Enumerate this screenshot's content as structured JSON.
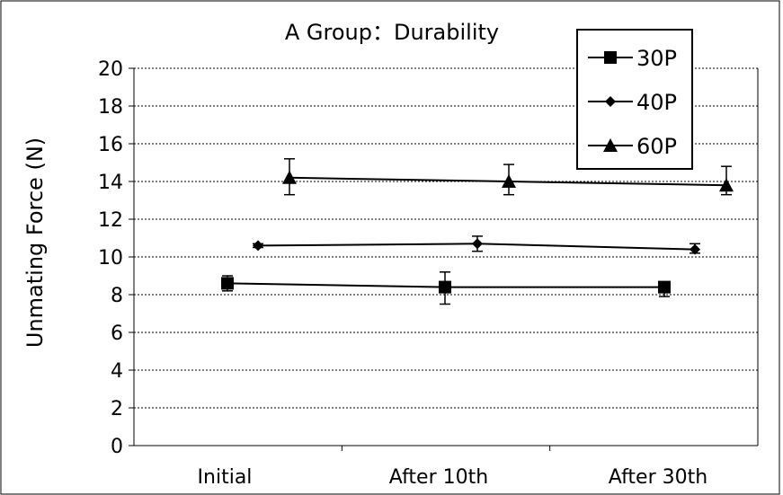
{
  "chart_data": {
    "type": "line",
    "title": "A Group：Durability",
    "xlabel": "",
    "ylabel": "Unmating Force (N)",
    "categories": [
      "Initial",
      "After 10th",
      "After 30th"
    ],
    "ylim": [
      0,
      20
    ],
    "yticks": [
      "0",
      "2",
      "4",
      "6",
      "8",
      "10",
      "12",
      "14",
      "16",
      "18",
      "20"
    ],
    "grid": "horizontal dotted",
    "legend_placement": "top-right",
    "series": [
      {
        "name": "30P",
        "marker": "square",
        "values": [
          8.6,
          8.4,
          8.4
        ],
        "error_low": [
          8.2,
          7.5,
          7.9
        ],
        "error_high": [
          9.0,
          9.2,
          8.5
        ]
      },
      {
        "name": "40P",
        "marker": "diamond",
        "values": [
          10.6,
          10.7,
          10.4
        ],
        "error_low": [
          10.5,
          10.3,
          10.2
        ],
        "error_high": [
          10.7,
          11.1,
          10.7
        ]
      },
      {
        "name": "60P",
        "marker": "triangle",
        "values": [
          14.2,
          14.0,
          13.8
        ],
        "error_low": [
          13.3,
          13.3,
          13.3
        ],
        "error_high": [
          15.2,
          14.9,
          14.8
        ]
      }
    ]
  },
  "colors": {
    "line": "#000000",
    "grid": "#000000",
    "background": "#ffffff"
  }
}
